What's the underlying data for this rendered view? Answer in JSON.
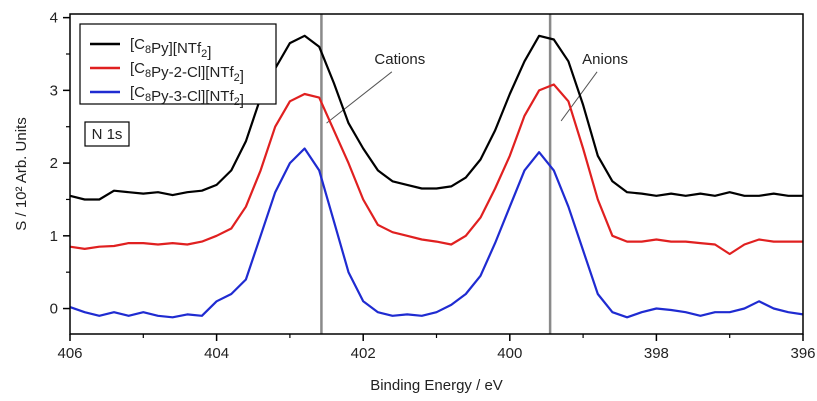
{
  "chart_data": {
    "type": "line",
    "xlabel": "Binding Energy / eV",
    "ylabel": "S / 10² Arb. Units",
    "xlim": [
      406,
      396
    ],
    "ylim": [
      -0.35,
      4.05
    ],
    "x_reversed": true,
    "x_ticks": [
      406,
      404,
      402,
      400,
      398,
      396
    ],
    "x_tick_labels": [
      "406",
      "404",
      "402",
      "400",
      "398",
      "396"
    ],
    "y_ticks": [
      0,
      1,
      2,
      3,
      4
    ],
    "y_tick_labels": [
      "0",
      "1",
      "2",
      "3",
      "4"
    ],
    "grid": false,
    "legend_position": "top-left",
    "box_label": "N 1s",
    "vertical_lines": [
      402.57,
      399.45
    ],
    "annotations": [
      {
        "text": "Cations",
        "x": 401.5,
        "y": 3.2,
        "line_to": [
          402.5,
          2.55
        ]
      },
      {
        "text": "Anions",
        "x": 398.7,
        "y": 3.2,
        "line_to": [
          399.3,
          2.58
        ]
      }
    ],
    "x": [
      406.0,
      405.8,
      405.6,
      405.4,
      405.2,
      405.0,
      404.8,
      404.6,
      404.4,
      404.2,
      404.0,
      403.8,
      403.6,
      403.4,
      403.2,
      403.0,
      402.8,
      402.6,
      402.4,
      402.2,
      402.0,
      401.8,
      401.6,
      401.4,
      401.2,
      401.0,
      400.8,
      400.6,
      400.4,
      400.2,
      400.0,
      399.8,
      399.6,
      399.4,
      399.2,
      399.0,
      398.8,
      398.6,
      398.4,
      398.2,
      398.0,
      397.8,
      397.6,
      397.4,
      397.2,
      397.0,
      396.8,
      396.6,
      396.4,
      396.2,
      396.0
    ],
    "series": [
      {
        "name": "[C₈Py][NTf₂]",
        "label_parts": [
          [
            "[C",
            ""
          ],
          [
            "8",
            "sub"
          ],
          [
            "Py][NTf",
            ""
          ],
          [
            "2",
            "sub"
          ],
          [
            "]",
            ""
          ]
        ],
        "color": "#000000",
        "values": [
          1.55,
          1.5,
          1.5,
          1.62,
          1.6,
          1.58,
          1.6,
          1.56,
          1.6,
          1.62,
          1.7,
          1.9,
          2.3,
          2.9,
          3.3,
          3.65,
          3.75,
          3.6,
          3.1,
          2.55,
          2.2,
          1.9,
          1.75,
          1.7,
          1.65,
          1.65,
          1.68,
          1.8,
          2.05,
          2.45,
          2.95,
          3.4,
          3.75,
          3.7,
          3.4,
          2.8,
          2.1,
          1.75,
          1.6,
          1.58,
          1.55,
          1.58,
          1.55,
          1.58,
          1.55,
          1.6,
          1.55,
          1.55,
          1.58,
          1.55,
          1.55
        ]
      },
      {
        "name": "[C₈Py-2-Cl][NTf₂]",
        "label_parts": [
          [
            "[C",
            ""
          ],
          [
            "8",
            "sub"
          ],
          [
            "Py-2-Cl][NTf",
            ""
          ],
          [
            "2",
            "sub"
          ],
          [
            "]",
            ""
          ]
        ],
        "color": "#e02020",
        "values": [
          0.85,
          0.82,
          0.85,
          0.86,
          0.9,
          0.9,
          0.88,
          0.9,
          0.88,
          0.92,
          1.0,
          1.1,
          1.4,
          1.9,
          2.5,
          2.85,
          2.95,
          2.9,
          2.45,
          2.0,
          1.5,
          1.15,
          1.05,
          1.0,
          0.95,
          0.92,
          0.88,
          1.0,
          1.25,
          1.65,
          2.1,
          2.65,
          3.0,
          3.08,
          2.85,
          2.2,
          1.5,
          1.0,
          0.92,
          0.92,
          0.95,
          0.92,
          0.92,
          0.9,
          0.88,
          0.75,
          0.88,
          0.95,
          0.92,
          0.92,
          0.92
        ]
      },
      {
        "name": "[C₈Py-3-Cl][NTf₂]",
        "label_parts": [
          [
            "[C",
            ""
          ],
          [
            "8",
            "sub"
          ],
          [
            "Py-3-Cl][NTf",
            ""
          ],
          [
            "2",
            "sub"
          ],
          [
            "]",
            ""
          ]
        ],
        "color": "#1f2bd1",
        "values": [
          0.02,
          -0.05,
          -0.1,
          -0.05,
          -0.1,
          -0.05,
          -0.1,
          -0.12,
          -0.08,
          -0.1,
          0.1,
          0.2,
          0.4,
          1.0,
          1.6,
          2.0,
          2.2,
          1.9,
          1.2,
          0.5,
          0.1,
          -0.05,
          -0.1,
          -0.08,
          -0.1,
          -0.05,
          0.05,
          0.2,
          0.45,
          0.9,
          1.4,
          1.9,
          2.15,
          1.9,
          1.4,
          0.8,
          0.2,
          -0.05,
          -0.12,
          -0.05,
          0.0,
          -0.02,
          -0.05,
          -0.1,
          -0.05,
          -0.05,
          0.0,
          0.1,
          0.0,
          -0.05,
          -0.08
        ]
      }
    ]
  }
}
